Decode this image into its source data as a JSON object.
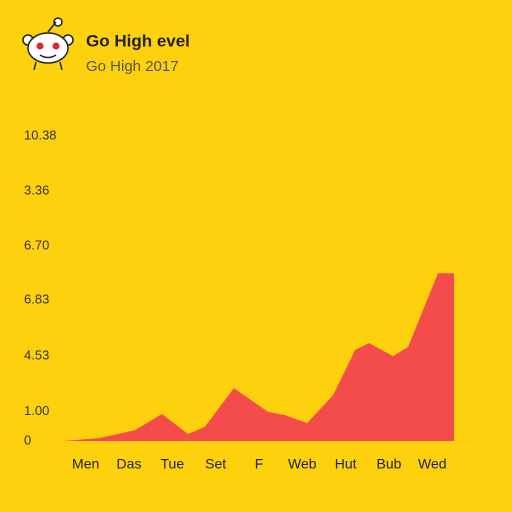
{
  "chart_data": {
    "type": "area",
    "title": "Go High evel",
    "subtitle": "Go High 2017",
    "x": [
      0,
      0.83,
      1.64,
      2.26,
      2.86,
      3.25,
      3.92,
      4.71,
      5.1,
      5.61,
      6.21,
      6.72,
      7.04,
      7.59,
      7.94,
      8.63,
      9.0
    ],
    "values": [
      0,
      0.1,
      0.37,
      0.92,
      0.24,
      0.48,
      1.8,
      0.99,
      0.88,
      0.61,
      1.56,
      3.1,
      3.33,
      2.89,
      3.2,
      5.71,
      5.71
    ],
    "color": "#f44b4b",
    "xlim": [
      0,
      9
    ],
    "xticks": [
      {
        "value": 0.5,
        "label": "Men"
      },
      {
        "value": 1.5,
        "label": "Das"
      },
      {
        "value": 2.5,
        "label": "Tue"
      },
      {
        "value": 3.5,
        "label": "Set"
      },
      {
        "value": 4.5,
        "label": "F"
      },
      {
        "value": 5.5,
        "label": "Web"
      },
      {
        "value": 6.5,
        "label": "Hut"
      },
      {
        "value": 7.5,
        "label": "Bub"
      },
      {
        "value": 8.5,
        "label": "Wed"
      }
    ],
    "ylim": [
      0,
      10.38
    ],
    "yticks": [
      0,
      {
        "value": 1.0,
        "label": "1.00"
      },
      {
        "value": 2.89,
        "label": "4.53"
      },
      {
        "value": 4.8,
        "label": "6.83"
      },
      {
        "value": 6.63,
        "label": "6.70"
      },
      {
        "value": 8.5,
        "label": "3.36"
      },
      10.38
    ],
    "grid": false
  }
}
